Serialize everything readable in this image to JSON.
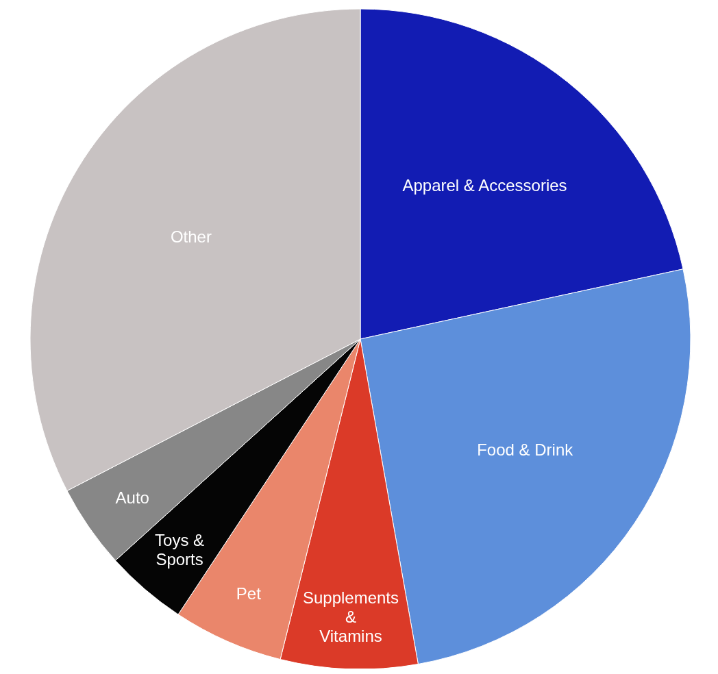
{
  "chart_data": {
    "type": "pie",
    "categories": [
      "Apparel & Accessories",
      "Food & Drink",
      "Supplements & Vitamins",
      "Pet",
      "Toys & Sports",
      "Auto",
      "Other"
    ],
    "values": [
      21.6,
      25.6,
      6.7,
      5.4,
      4.0,
      4.1,
      32.6
    ],
    "colors": [
      "#121cb3",
      "#5d8fdb",
      "#db3a28",
      "#ea866b",
      "#050505",
      "#878787",
      "#c8c2c2"
    ]
  }
}
